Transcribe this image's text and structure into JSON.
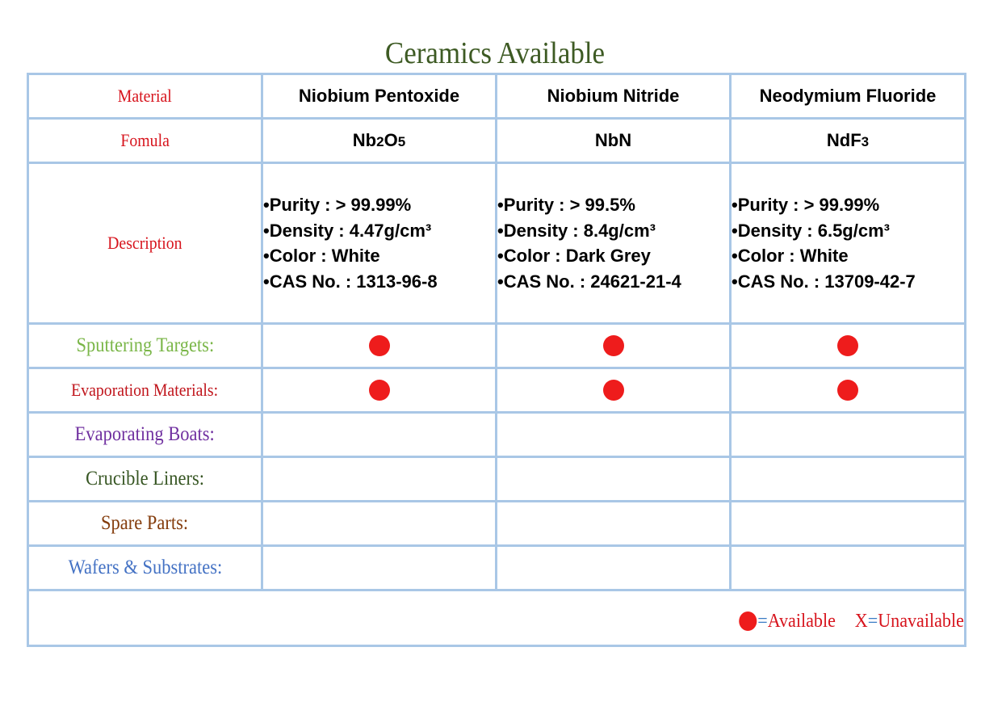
{
  "title": "Ceramics Available",
  "colors": {
    "title": "#3d5a23",
    "grid_border": "#a9c7e6",
    "dot": "#ee1c1c",
    "material_label": "#d7141d",
    "formula_label": "#d7141d",
    "description_label": "#d7141d",
    "sputtering_label": "#7ab648",
    "evaporation_materials_label": "#c0141b",
    "evaporating_boats_label": "#7030a0",
    "crucible_liners_label": "#375623",
    "spare_parts_label": "#843c0c",
    "wafers_label": "#4472c4",
    "legend_text": "#d7141d",
    "legend_equals": "#3a7cc4"
  },
  "row_labels": {
    "material": "Material",
    "formula": "Fomula",
    "description": "Description",
    "sputtering_targets": "Sputtering Targets:",
    "evaporation_materials": "Evaporation Materials:",
    "evaporating_boats": "Evaporating Boats:",
    "crucible_liners": "Crucible Liners:",
    "spare_parts": "Spare Parts:",
    "wafers_substrates": "Wafers & Substrates:"
  },
  "materials": [
    {
      "name": "Niobium Pentoxide",
      "formula": {
        "parts": [
          "Nb",
          "2",
          "O",
          "5"
        ]
      },
      "description": [
        "•Purity : > 99.99%",
        "•Density : 4.47g/cm³",
        "•Color : White",
        "•CAS No. : 1313-96-8"
      ],
      "sputtering_targets": true,
      "evaporation_materials": true,
      "evaporating_boats": false,
      "crucible_liners": false,
      "spare_parts": false,
      "wafers_substrates": false
    },
    {
      "name": "Niobium Nitride",
      "formula": {
        "parts": [
          "NbN"
        ]
      },
      "description": [
        "•Purity : > 99.5%",
        "•Density : 8.4g/cm³",
        "•Color : Dark Grey",
        "•CAS No. : 24621-21-4"
      ],
      "sputtering_targets": true,
      "evaporation_materials": true,
      "evaporating_boats": false,
      "crucible_liners": false,
      "spare_parts": false,
      "wafers_substrates": false
    },
    {
      "name": "Neodymium Fluoride",
      "formula": {
        "parts": [
          "NdF",
          "3"
        ]
      },
      "description": [
        "•Purity : > 99.99%",
        "•Density : 6.5g/cm³",
        "•Color : White",
        "•CAS No. : 13709-42-7"
      ],
      "sputtering_targets": true,
      "evaporation_materials": true,
      "evaporating_boats": false,
      "crucible_liners": false,
      "spare_parts": false,
      "wafers_substrates": false
    }
  ],
  "legend": {
    "available_equals": "=",
    "available_text": "Available",
    "unavailable_symbol": "X",
    "unavailable_equals": "=",
    "unavailable_text": "Unavailable"
  }
}
